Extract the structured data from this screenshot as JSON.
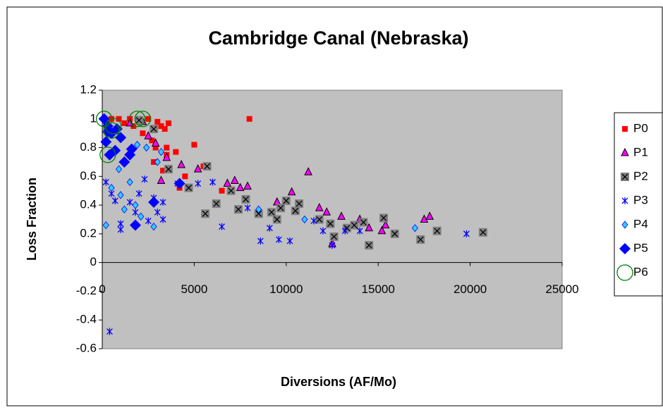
{
  "chart_data": {
    "type": "scatter",
    "title": "Cambridge Canal (Nebraska)",
    "xlabel": "Diversions (AF/Mo)",
    "ylabel": "Loss Fraction",
    "xlim": [
      0,
      25000
    ],
    "ylim": [
      -0.6,
      1.2
    ],
    "xticks": [
      0,
      5000,
      10000,
      15000,
      20000,
      25000
    ],
    "yticks": [
      -0.6,
      -0.4,
      -0.2,
      0,
      0.2,
      0.4,
      0.6,
      0.8,
      1,
      1.2
    ],
    "grid": false,
    "legend": "right",
    "series": [
      {
        "name": "P0",
        "color": "#ff0000",
        "marker": "square",
        "x": [
          500,
          900,
          1200,
          1500,
          1700,
          2000,
          2200,
          2500,
          2700,
          2900,
          3000,
          3200,
          3400,
          3600,
          3500,
          3500,
          2800,
          4000,
          4500,
          5000,
          4200,
          3300,
          8000,
          6500,
          5500
        ],
        "values": [
          1,
          1,
          0.97,
          1,
          0.95,
          1,
          0.9,
          1,
          0.85,
          0.8,
          0.98,
          0.95,
          0.93,
          0.97,
          0.8,
          0.75,
          0.7,
          0.77,
          0.6,
          0.82,
          0.52,
          0.64,
          1,
          0.5,
          0.67
        ]
      },
      {
        "name": "P1",
        "color": "#ff00ff",
        "marker": "triangle",
        "x": [
          1500,
          2200,
          2500,
          2900,
          3200,
          3500,
          4300,
          5200,
          6800,
          7200,
          7500,
          7900,
          9500,
          10300,
          11200,
          11800,
          12500,
          13000,
          14000,
          14500,
          15200,
          15400,
          17500,
          17800,
          12200
        ],
        "values": [
          0.97,
          0.98,
          0.88,
          0.83,
          0.57,
          0.73,
          0.68,
          0.65,
          0.55,
          0.57,
          0.52,
          0.53,
          0.42,
          0.49,
          0.63,
          0.38,
          0.13,
          0.32,
          0.3,
          0.24,
          0.22,
          0.26,
          0.3,
          0.32,
          0.35
        ]
      },
      {
        "name": "P2",
        "color": "#808080",
        "marker": "xsquare",
        "x": [
          2000,
          2800,
          3600,
          4700,
          5700,
          5600,
          6200,
          7000,
          7400,
          7800,
          8500,
          9200,
          9700,
          10000,
          10500,
          10700,
          11800,
          12600,
          13300,
          13700,
          14200,
          14500,
          15300,
          15900,
          17300,
          18200,
          20700,
          12400,
          9500
        ],
        "values": [
          0.99,
          0.93,
          0.65,
          0.52,
          0.67,
          0.34,
          0.41,
          0.5,
          0.37,
          0.44,
          0.34,
          0.35,
          0.38,
          0.43,
          0.36,
          0.41,
          0.3,
          0.18,
          0.24,
          0.26,
          0.28,
          0.12,
          0.31,
          0.2,
          0.16,
          0.22,
          0.21,
          0.27,
          0.3
        ]
      },
      {
        "name": "P3",
        "color": "#0000ff",
        "marker": "star",
        "x": [
          200,
          400,
          500,
          700,
          1000,
          1000,
          1500,
          1800,
          2000,
          2300,
          2500,
          2800,
          3000,
          3300,
          3300,
          4100,
          5200,
          6000,
          6500,
          8600,
          9100,
          9600,
          10200,
          11500,
          12000,
          12500,
          13200,
          14000,
          19800,
          7900
        ],
        "values": [
          0.56,
          -0.48,
          0.48,
          0.43,
          0.23,
          0.27,
          0.42,
          0.35,
          0.48,
          0.58,
          0.29,
          0.45,
          0.35,
          0.42,
          0.3,
          0.55,
          0.55,
          0.56,
          0.25,
          0.15,
          0.24,
          0.16,
          0.15,
          0.29,
          0.22,
          0.12,
          0.22,
          0.22,
          0.2,
          0.38
        ]
      },
      {
        "name": "P4",
        "color": "#33ccff",
        "marker": "diamond",
        "x": [
          200,
          500,
          900,
          1200,
          1500,
          1800,
          2100,
          2400,
          2800,
          3200,
          1900,
          8500,
          11000,
          17000,
          3000,
          1000
        ],
        "values": [
          0.26,
          0.52,
          0.65,
          0.37,
          0.56,
          0.4,
          0.32,
          0.8,
          0.25,
          0.77,
          0.82,
          0.37,
          0.3,
          0.24,
          0.7,
          0.47
        ]
      },
      {
        "name": "P5",
        "color": "#0000ff",
        "marker": "bigdiamond",
        "x": [
          100,
          200,
          300,
          500,
          700,
          800,
          1000,
          1200,
          1500,
          1600,
          1800,
          2800,
          4200,
          400,
          300
        ],
        "values": [
          1,
          0.84,
          0.95,
          0.9,
          0.78,
          0.93,
          0.87,
          0.7,
          0.75,
          0.79,
          0.26,
          0.42,
          0.55,
          0.75,
          0.91
        ]
      },
      {
        "name": "P6",
        "color": "#008000",
        "marker": "circle",
        "x": [
          100,
          500,
          600,
          1900,
          300,
          2200
        ],
        "values": [
          1,
          0.92,
          0.95,
          1,
          0.75,
          1
        ]
      }
    ]
  }
}
